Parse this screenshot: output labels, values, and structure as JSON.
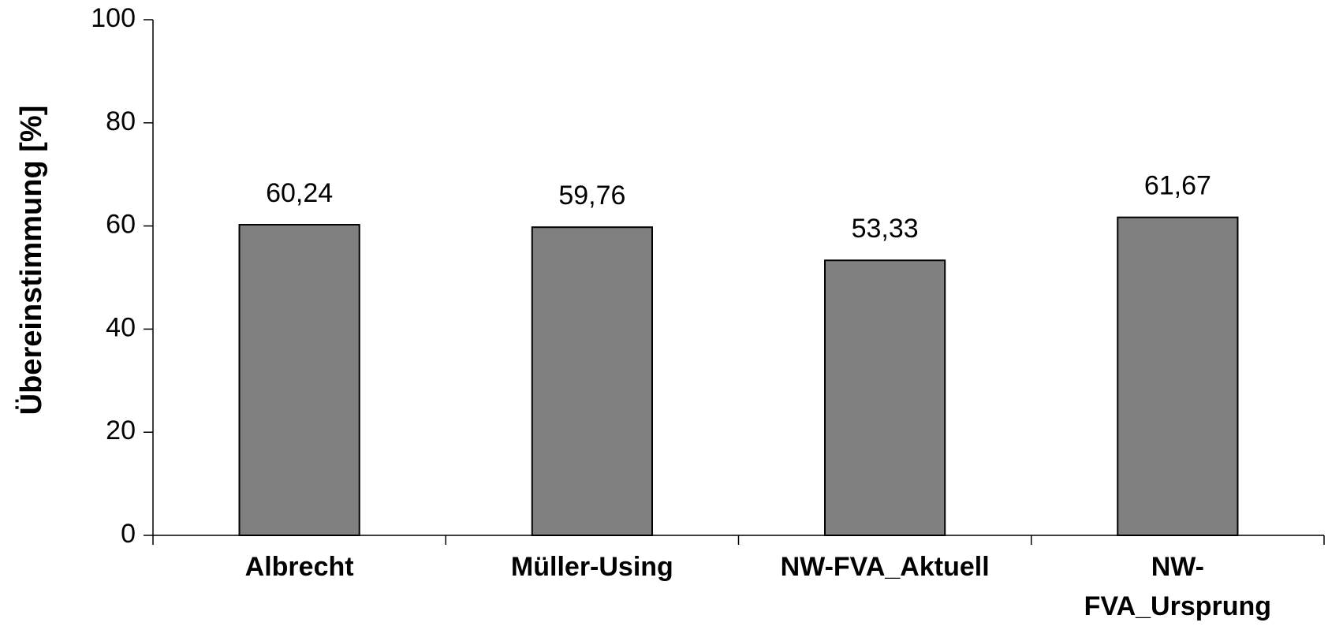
{
  "chart_data": {
    "type": "bar",
    "y_label": "Übereinstimmung [%]",
    "categories": [
      "Albrecht",
      "Müller-Using",
      "NW-FVA_Aktuell",
      "NW-FVA_Ursprung"
    ],
    "values": [
      60.24,
      59.76,
      53.33,
      61.67
    ],
    "value_labels": [
      "60,24",
      "59,76",
      "53,33",
      "61,67"
    ],
    "color": "#808080",
    "ylim": [
      0,
      100
    ],
    "yticks": [
      0,
      20,
      40,
      60,
      80,
      100
    ],
    "grid": false
  }
}
